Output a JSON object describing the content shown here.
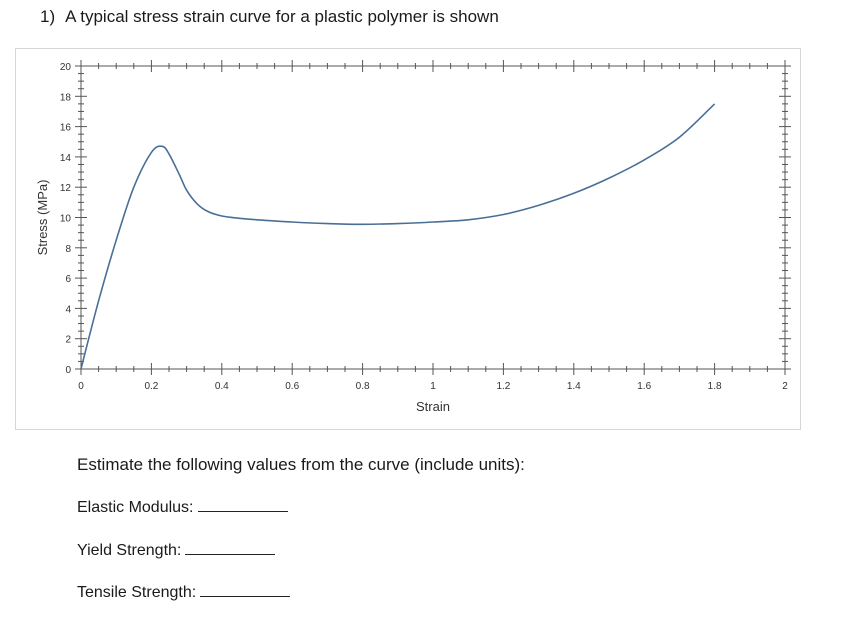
{
  "question": {
    "number": "1)",
    "text": "A typical stress strain curve for a plastic polymer is shown"
  },
  "chart_data": {
    "type": "line",
    "xlabel": "Strain",
    "ylabel": "Stress (MPa)",
    "xlim": [
      0,
      2
    ],
    "ylim": [
      0,
      20
    ],
    "x_ticks": [
      "0",
      "0.2",
      "0.4",
      "0.6",
      "0.8",
      "1",
      "1.2",
      "1.4",
      "1.6",
      "1.8",
      "2"
    ],
    "y_ticks": [
      "0",
      "2",
      "4",
      "6",
      "8",
      "10",
      "12",
      "14",
      "16",
      "18",
      "20"
    ],
    "grid": false,
    "series": [
      {
        "color": "#4a6f96",
        "x": [
          0,
          0.05,
          0.1,
          0.15,
          0.2,
          0.23,
          0.25,
          0.28,
          0.3,
          0.33,
          0.36,
          0.4,
          0.45,
          0.5,
          0.6,
          0.7,
          0.8,
          0.9,
          1.0,
          1.1,
          1.2,
          1.3,
          1.4,
          1.5,
          1.6,
          1.7,
          1.8
        ],
        "y": [
          0,
          4.5,
          8.5,
          12.0,
          14.3,
          14.7,
          14.2,
          12.8,
          11.8,
          10.9,
          10.4,
          10.1,
          9.95,
          9.85,
          9.7,
          9.6,
          9.55,
          9.6,
          9.7,
          9.85,
          10.2,
          10.8,
          11.6,
          12.6,
          13.8,
          15.3,
          17.5
        ]
      }
    ]
  },
  "prompt": "Estimate the following values from the curve (include units):",
  "fields": [
    {
      "label": "Elastic Modulus:"
    },
    {
      "label": "Yield Strength:"
    },
    {
      "label": "Tensile Strength:"
    }
  ]
}
